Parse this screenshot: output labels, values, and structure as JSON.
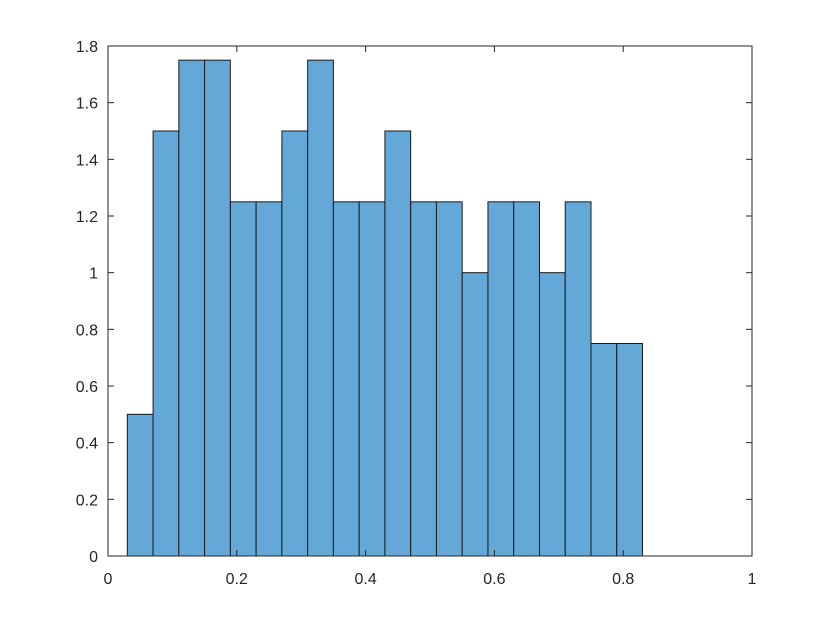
{
  "chart_data": {
    "type": "bar",
    "subtype": "histogram",
    "bin_edges": [
      0.03,
      0.07,
      0.11,
      0.15,
      0.19,
      0.23,
      0.27,
      0.31,
      0.35,
      0.39,
      0.43,
      0.47,
      0.51,
      0.55,
      0.59,
      0.63,
      0.67,
      0.71,
      0.75,
      0.79,
      0.83
    ],
    "values": [
      0.5,
      1.5,
      1.75,
      1.75,
      1.25,
      1.25,
      1.5,
      1.75,
      1.25,
      1.25,
      1.5,
      1.25,
      1.25,
      1.0,
      1.25,
      1.25,
      1.0,
      1.25,
      0.75,
      0.75
    ],
    "xlim": [
      0,
      1
    ],
    "ylim": [
      0,
      1.8
    ],
    "x_ticks": [
      {
        "value": 0,
        "label": "0"
      },
      {
        "value": 0.2,
        "label": "0.2"
      },
      {
        "value": 0.4,
        "label": "0.4"
      },
      {
        "value": 0.6,
        "label": "0.6"
      },
      {
        "value": 0.8,
        "label": "0.8"
      },
      {
        "value": 1,
        "label": "1"
      }
    ],
    "y_ticks": [
      {
        "value": 0,
        "label": "0"
      },
      {
        "value": 0.2,
        "label": "0.2"
      },
      {
        "value": 0.4,
        "label": "0.4"
      },
      {
        "value": 0.6,
        "label": "0.6"
      },
      {
        "value": 0.8,
        "label": "0.8"
      },
      {
        "value": 1,
        "label": "1"
      },
      {
        "value": 1.2,
        "label": "1.2"
      },
      {
        "value": 1.4,
        "label": "1.4"
      },
      {
        "value": 1.6,
        "label": "1.6"
      },
      {
        "value": 1.8,
        "label": "1.8"
      }
    ],
    "grid": false,
    "box": true,
    "bar_color": "#64a8d8",
    "edge_color": "#1a1a1a",
    "axis_color": "#262626"
  }
}
